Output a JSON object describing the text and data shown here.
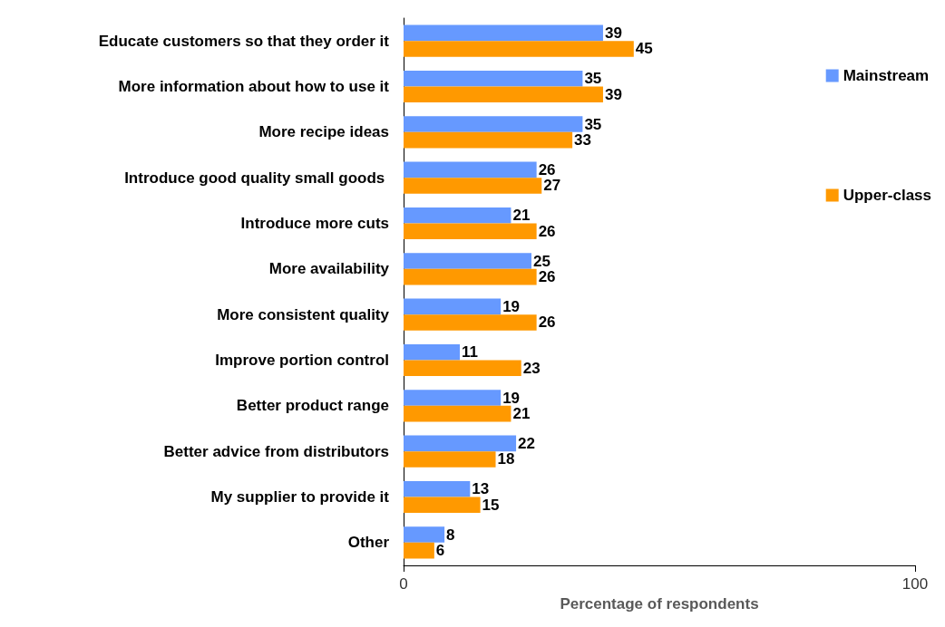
{
  "chart_data": {
    "type": "bar",
    "orientation": "horizontal",
    "categories": [
      "Educate customers so that they order it",
      "More information about how to use it",
      "More recipe ideas",
      "Introduce good quality small goods ",
      "Introduce more cuts",
      "More availability",
      "More consistent quality",
      "Improve portion control",
      "Better product range",
      "Better advice from distributors",
      "My supplier to provide it",
      "Other"
    ],
    "series": [
      {
        "name": "Mainstream",
        "color": "#6699ff",
        "values": [
          39,
          35,
          35,
          26,
          21,
          25,
          19,
          11,
          19,
          22,
          13,
          8
        ]
      },
      {
        "name": "Upper-class",
        "color": "#ff9900",
        "values": [
          45,
          39,
          33,
          27,
          26,
          26,
          26,
          23,
          21,
          18,
          15,
          6
        ]
      }
    ],
    "xlim": [
      0,
      100
    ],
    "xticks": [
      0,
      100
    ],
    "xlabel": "Percentage of respondents",
    "data_labels": true,
    "legend": "right"
  }
}
